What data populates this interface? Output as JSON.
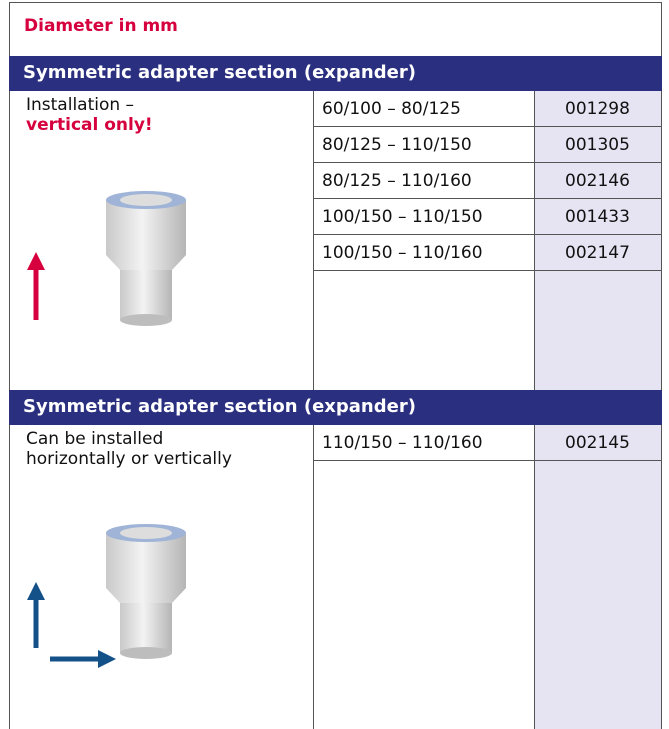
{
  "header": {
    "title": "Diameter in mm"
  },
  "sections": [
    {
      "title": "Symmetric adapter section (expander)",
      "description": [
        "Installation –",
        "vertical only!"
      ],
      "rows": [
        [
          "60/100 – 80/125",
          "001298"
        ],
        [
          "80/125 – 110/150",
          "001305"
        ],
        [
          "80/125 – 110/160",
          "002146"
        ],
        [
          "100/150 – 110/150",
          "001433"
        ],
        [
          "100/150 – 110/160",
          "002147"
        ]
      ]
    },
    {
      "title": "Symmetric adapter section (expander)",
      "description": [
        "Can be installed",
        "horizontally or vertically"
      ],
      "rows": [
        [
          "110/150 – 110/160",
          "002145"
        ]
      ]
    }
  ]
}
